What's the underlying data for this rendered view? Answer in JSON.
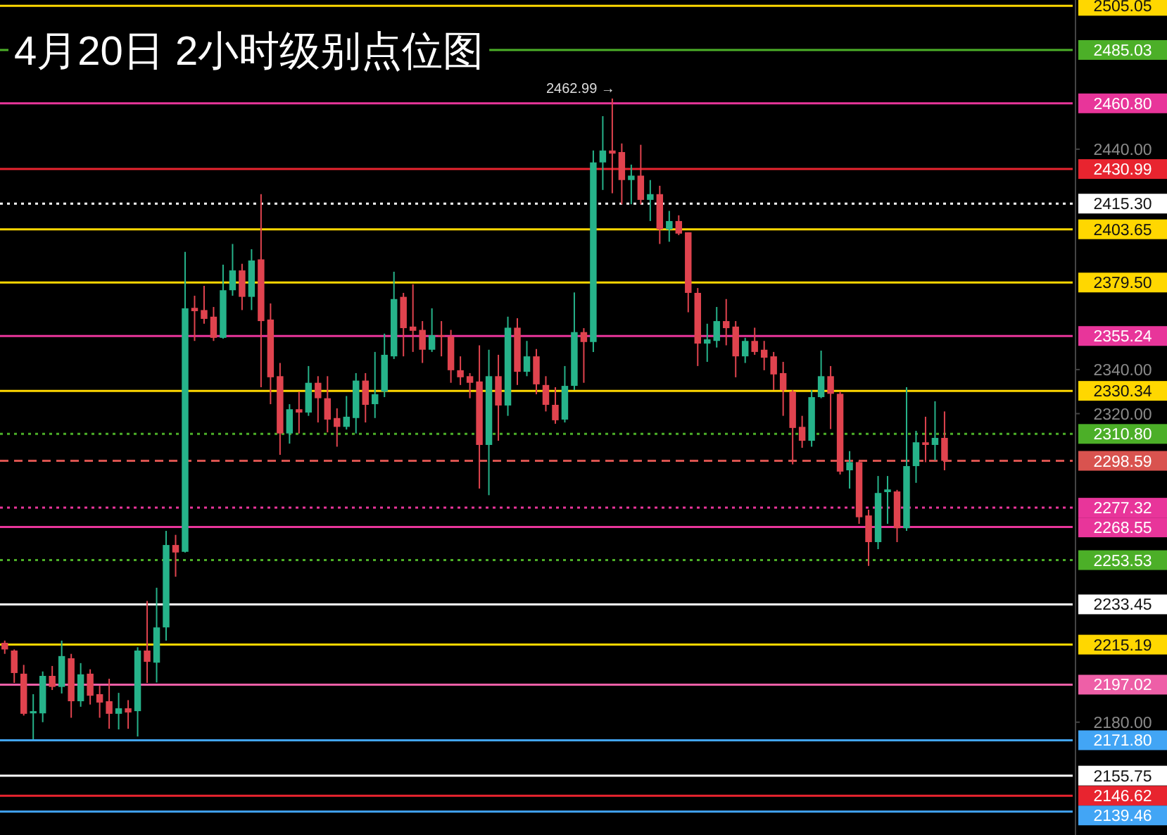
{
  "chart_data": {
    "type": "candlestick",
    "title": "4月20日  2小时级别点位图",
    "categories": [
      null,
      null,
      null,
      null,
      null,
      null,
      null,
      null,
      null,
      null,
      null,
      null,
      null,
      null,
      null,
      null,
      null,
      null,
      null,
      null,
      null,
      null,
      null,
      null,
      null,
      null,
      null,
      null,
      null,
      null,
      null,
      null,
      null,
      null,
      null,
      null,
      null,
      null,
      null,
      null,
      null,
      null,
      null,
      null,
      null,
      null,
      null,
      null,
      null,
      null,
      null,
      null,
      null,
      null,
      null,
      null,
      null,
      null,
      null,
      null,
      null,
      null,
      null,
      null,
      null,
      null,
      null,
      null,
      null,
      null,
      null,
      null,
      null,
      null,
      null,
      null,
      null,
      null,
      null,
      null,
      null,
      null,
      null,
      null,
      null,
      null,
      null,
      null,
      null,
      null,
      null,
      null,
      null,
      null,
      null,
      null,
      null,
      null,
      null,
      null,
      null,
      null,
      null,
      null,
      null,
      null,
      null,
      null,
      null,
      null,
      null,
      null,
      null
    ],
    "ohlc": [
      [
        2216,
        2217,
        2211,
        2213
      ],
      [
        2212.5,
        2213,
        2197.8,
        2202.3
      ],
      [
        2202,
        2206,
        2183,
        2183.8
      ],
      [
        2184,
        2192.7,
        2172.2,
        2185
      ],
      [
        2184,
        2203,
        2180,
        2201
      ],
      [
        2201,
        2205.5,
        2194.6,
        2196
      ],
      [
        2196,
        2217,
        2193,
        2210
      ],
      [
        2209,
        2211,
        2182,
        2189.5
      ],
      [
        2189.5,
        2206.8,
        2187,
        2201.7
      ],
      [
        2202,
        2204,
        2188,
        2192
      ],
      [
        2192.7,
        2196.5,
        2182,
        2188.9
      ],
      [
        2189.5,
        2199.7,
        2177,
        2183.8
      ],
      [
        2183.8,
        2193.3,
        2176.7,
        2186.3
      ],
      [
        2186.3,
        2190,
        2177,
        2184.4
      ],
      [
        2185,
        2214,
        2173.5,
        2212.5
      ],
      [
        2212.5,
        2235,
        2197.8,
        2207.4
      ],
      [
        2207,
        2241,
        2198,
        2223
      ],
      [
        2223,
        2266.8,
        2217,
        2260.4
      ],
      [
        2260.4,
        2265,
        2246,
        2257
      ],
      [
        2257.3,
        2393.4,
        2257,
        2367.8
      ],
      [
        2368,
        2373.5,
        2353,
        2366.5
      ],
      [
        2367,
        2378,
        2360.8,
        2363
      ],
      [
        2364,
        2368.4,
        2353,
        2354.4
      ],
      [
        2354.4,
        2387.6,
        2354,
        2376
      ],
      [
        2376,
        2397,
        2373.5,
        2385
      ],
      [
        2385,
        2388,
        2367,
        2373
      ],
      [
        2373,
        2394.6,
        2367,
        2389.5
      ],
      [
        2390,
        2419.6,
        2332,
        2362
      ],
      [
        2362.7,
        2370,
        2324.3,
        2336.5
      ],
      [
        2337,
        2343,
        2301.3,
        2311
      ],
      [
        2311,
        2324.3,
        2306.4,
        2322
      ],
      [
        2322,
        2330,
        2311,
        2320.5
      ],
      [
        2320.5,
        2341.6,
        2319,
        2334
      ],
      [
        2334,
        2337,
        2316,
        2327
      ],
      [
        2327,
        2337,
        2311.5,
        2317.3
      ],
      [
        2318,
        2322.4,
        2305,
        2314
      ],
      [
        2314,
        2328,
        2312.8,
        2318.6
      ],
      [
        2318,
        2338.4,
        2311,
        2335
      ],
      [
        2335,
        2338.4,
        2316,
        2324
      ],
      [
        2324.3,
        2348,
        2318,
        2328.8
      ],
      [
        2330,
        2356.3,
        2327.5,
        2346.7
      ],
      [
        2346,
        2384.4,
        2344.8,
        2372
      ],
      [
        2373,
        2374.8,
        2346,
        2358.8
      ],
      [
        2359.5,
        2378.7,
        2348,
        2357.6
      ],
      [
        2358,
        2362,
        2343,
        2349
      ],
      [
        2349,
        2367.8,
        2348,
        2355.6
      ],
      [
        2355.6,
        2362,
        2346,
        2355
      ],
      [
        2355,
        2358,
        2334,
        2339.7
      ],
      [
        2339.7,
        2346,
        2333,
        2336.5
      ],
      [
        2337,
        2338.4,
        2327,
        2334
      ],
      [
        2334.6,
        2351,
        2286,
        2305.8
      ],
      [
        2305.8,
        2349,
        2283,
        2337
      ],
      [
        2337,
        2346.7,
        2307.7,
        2323.7
      ],
      [
        2323.7,
        2364,
        2319,
        2359
      ],
      [
        2359,
        2363.3,
        2333,
        2339
      ],
      [
        2339,
        2353,
        2337,
        2346
      ],
      [
        2346,
        2349.3,
        2328.8,
        2333.3
      ],
      [
        2333,
        2337,
        2321,
        2324
      ],
      [
        2324,
        2332,
        2315.4,
        2317
      ],
      [
        2317.3,
        2341.6,
        2316,
        2332.6
      ],
      [
        2332.6,
        2375,
        2330.7,
        2357
      ],
      [
        2357,
        2358.8,
        2334,
        2352.5
      ],
      [
        2352.5,
        2439.4,
        2348,
        2434
      ],
      [
        2434,
        2455,
        2421.5,
        2439.4
      ],
      [
        2439.4,
        2462.99,
        2420,
        2438
      ],
      [
        2438.7,
        2442.6,
        2415,
        2426
      ],
      [
        2426,
        2433,
        2415,
        2428
      ],
      [
        2428,
        2442,
        2415,
        2417
      ],
      [
        2417,
        2426,
        2407.4,
        2419.6
      ],
      [
        2419.6,
        2423.4,
        2397,
        2403.6
      ],
      [
        2403.6,
        2412,
        2398,
        2407.4
      ],
      [
        2407.4,
        2410,
        2401,
        2401.7
      ],
      [
        2402.3,
        2402.3,
        2366,
        2374.8
      ],
      [
        2374.8,
        2377,
        2341.6,
        2351.8
      ],
      [
        2351.8,
        2360.8,
        2343.5,
        2353.7
      ],
      [
        2353,
        2368.4,
        2350,
        2362
      ],
      [
        2362,
        2372,
        2351,
        2358.8
      ],
      [
        2359.5,
        2362,
        2336.5,
        2346
      ],
      [
        2346,
        2354.4,
        2343,
        2353
      ],
      [
        2353,
        2359,
        2346.7,
        2348
      ],
      [
        2349,
        2353,
        2339.7,
        2345.4
      ],
      [
        2346,
        2348,
        2330.7,
        2337.8
      ],
      [
        2338.4,
        2343.5,
        2319,
        2330.7
      ],
      [
        2330,
        2330.7,
        2297,
        2313.5
      ],
      [
        2314,
        2319,
        2304.5,
        2307.7
      ],
      [
        2307.7,
        2330.7,
        2305,
        2327.5
      ],
      [
        2327.5,
        2348.6,
        2327,
        2337
      ],
      [
        2337,
        2341.6,
        2313,
        2329
      ],
      [
        2329,
        2330,
        2292.4,
        2293.7
      ],
      [
        2294.3,
        2303,
        2286,
        2298
      ],
      [
        2298,
        2298.6,
        2270,
        2273
      ],
      [
        2273.8,
        2276.4,
        2250.9,
        2261.7
      ],
      [
        2261.7,
        2291.7,
        2258.5,
        2284
      ],
      [
        2284.4,
        2291.7,
        2270,
        2285.6
      ],
      [
        2284.7,
        2285.4,
        2261.7,
        2268
      ],
      [
        2268,
        2332,
        2266.8,
        2296.2
      ],
      [
        2296.2,
        2312.2,
        2288.6,
        2307
      ],
      [
        2307,
        2318.6,
        2298,
        2305.8
      ],
      [
        2305.8,
        2325.6,
        2298.8,
        2309
      ],
      [
        2309,
        2321,
        2294.3,
        2298.59
      ],
      null,
      null,
      null,
      null,
      null,
      null,
      null,
      null,
      null,
      null,
      null,
      null,
      null
    ],
    "ylim": [
      2128.8,
      2507.7
    ],
    "yticks": [
      {
        "value": 2440,
        "label": "2440.00"
      },
      {
        "value": 2340,
        "label": "2340.00"
      },
      {
        "value": 2320,
        "label": "2320.00"
      },
      {
        "value": 2180,
        "label": "2180.00"
      }
    ],
    "ref_lines": [
      {
        "axis": "y",
        "value": 2505.05,
        "label": "2505.05",
        "color": "#ffd700",
        "line_style": "solid"
      },
      {
        "axis": "y",
        "value": 2485.03,
        "label": "2485.03",
        "color": "#4caf28",
        "line_style": "solid"
      },
      {
        "axis": "y",
        "value": 2460.8,
        "label": "2460.80",
        "color": "#e8359a",
        "line_style": "solid"
      },
      {
        "axis": "y",
        "value": 2430.99,
        "label": "2430.99",
        "color": "#e8242f",
        "line_style": "solid"
      },
      {
        "axis": "y",
        "value": 2415.3,
        "label": "2415.30",
        "color": "#ffffff",
        "line_style": "dotted"
      },
      {
        "axis": "y",
        "value": 2403.65,
        "label": "2403.65",
        "color": "#ffd700",
        "line_style": "solid"
      },
      {
        "axis": "y",
        "value": 2379.5,
        "label": "2379.50",
        "color": "#ffd700",
        "line_style": "solid"
      },
      {
        "axis": "y",
        "value": 2355.24,
        "label": "2355.24",
        "color": "#e8359a",
        "line_style": "solid"
      },
      {
        "axis": "y",
        "value": 2330.34,
        "label": "2330.34",
        "color": "#ffd700",
        "line_style": "solid"
      },
      {
        "axis": "y",
        "value": 2310.8,
        "label": "2310.80",
        "color": "#4caf28",
        "line_style": "dotted"
      },
      {
        "axis": "y",
        "value": 2298.59,
        "label": "2298.59",
        "color": "#d9534f",
        "line_style": "dashed"
      },
      {
        "axis": "y",
        "value": 2277.32,
        "label": "2277.32",
        "color": "#e8359a",
        "line_style": "dotted"
      },
      {
        "axis": "y",
        "value": 2268.55,
        "label": "2268.55",
        "color": "#e8359a",
        "line_style": "solid"
      },
      {
        "axis": "y",
        "value": 2253.53,
        "label": "2253.53",
        "color": "#4caf28",
        "line_style": "dotted"
      },
      {
        "axis": "y",
        "value": 2233.45,
        "label": "2233.45",
        "color": "#ffffff",
        "line_style": "solid"
      },
      {
        "axis": "y",
        "value": 2215.19,
        "label": "2215.19",
        "color": "#ffd700",
        "line_style": "solid"
      },
      {
        "axis": "y",
        "value": 2197.02,
        "label": "2197.02",
        "color": "#ee5fa7",
        "line_style": "solid"
      },
      {
        "axis": "y",
        "value": 2171.8,
        "label": "2171.80",
        "color": "#42a5f5",
        "line_style": "solid"
      },
      {
        "axis": "y",
        "value": 2155.75,
        "label": "2155.75",
        "color": "#ffffff",
        "line_style": "solid"
      },
      {
        "axis": "y",
        "value": 2146.62,
        "label": "2146.62",
        "color": "#e8242f",
        "line_style": "solid"
      },
      {
        "axis": "y",
        "value": 2139.46,
        "label": "2139.46",
        "color": "#42a5f5",
        "line_style": "solid"
      }
    ],
    "annotations": [
      "2462.99 →"
    ]
  }
}
